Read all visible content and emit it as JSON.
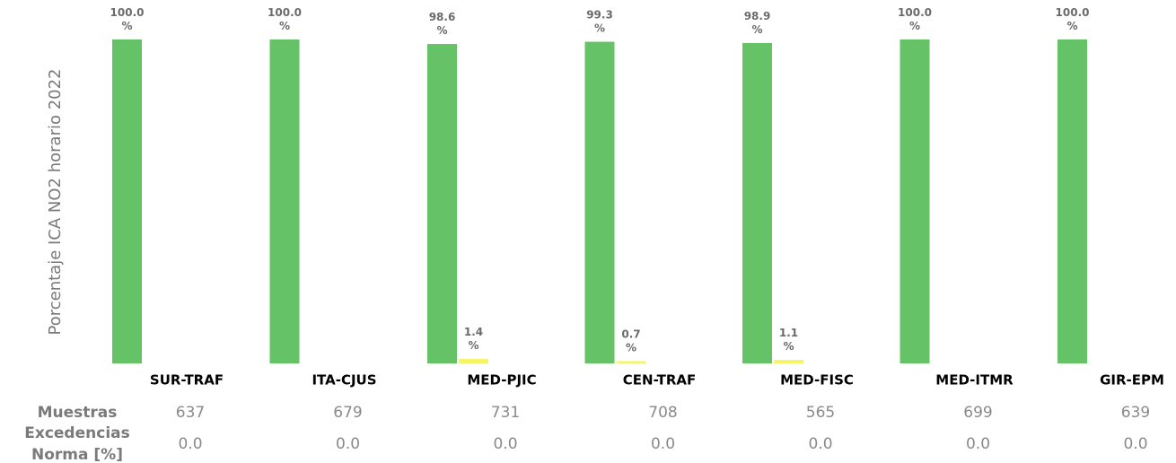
{
  "chart_data": {
    "type": "bar",
    "y_label": "Porcentaje ICA NO2 horario 2022",
    "categories": [
      "SUR-TRAF",
      "ITA-CJUS",
      "MED-PJIC",
      "CEN-TRAF",
      "MED-FISC",
      "MED-ITMR",
      "GIR-EPM"
    ],
    "series": [
      {
        "color": "#66c266",
        "values": [
          100,
          100,
          98.6,
          99.3,
          98.9,
          100,
          100
        ],
        "value_labels": [
          "100.0 %",
          "100.0 %",
          "98.6 %",
          "99.3 %",
          "98.9 %",
          "100.0 %",
          "100.0 %"
        ]
      },
      {
        "color": "#f5f56a",
        "values": [
          null,
          null,
          1.4,
          0.7,
          1.1,
          null,
          null
        ],
        "value_labels": [
          null,
          null,
          "1.4 %",
          "0.7 %",
          "1.1 %",
          null,
          null
        ]
      }
    ],
    "ylim": [
      0,
      100
    ],
    "table": {
      "rows": [
        {
          "header": "Muestras",
          "cells": [
            637,
            679,
            731,
            708,
            565,
            699,
            639
          ]
        },
        {
          "header": "Excedencias Norma [%]",
          "cells": [
            "0.0",
            "0.0",
            "0.0",
            "0.0",
            "0.0",
            "0.0",
            "0.0"
          ]
        }
      ]
    }
  }
}
